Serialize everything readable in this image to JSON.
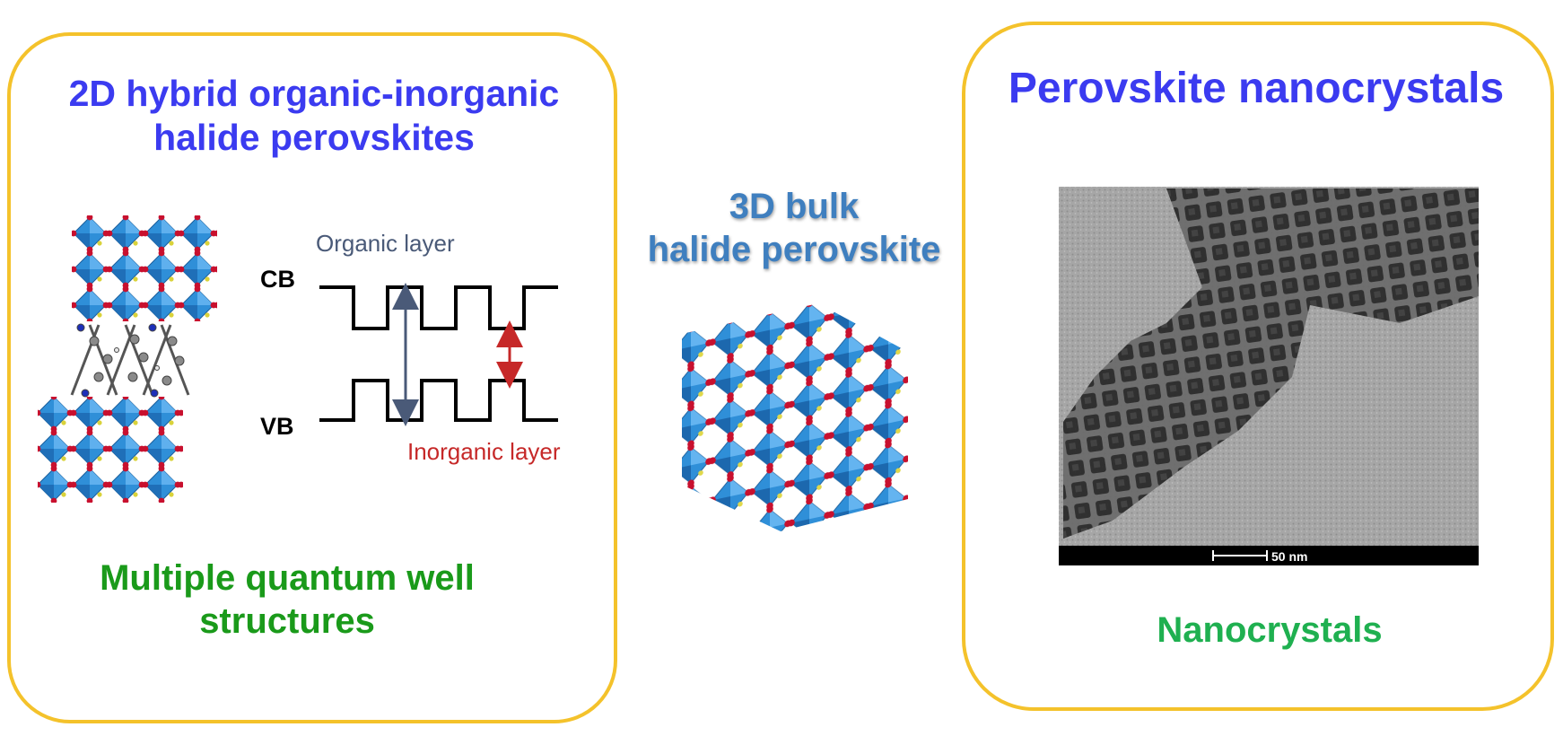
{
  "left_panel": {
    "title_line1": "2D hybrid organic-inorganic",
    "title_line2": "halide perovskites",
    "band_diagram": {
      "organic_label": "Organic layer",
      "inorganic_label": "Inorganic layer",
      "cb_label": "CB",
      "vb_label": "VB"
    },
    "caption_line1": "Multiple quantum well",
    "caption_line2": "structures"
  },
  "middle": {
    "title_line1": "3D bulk",
    "title_line2": "halide perovskite"
  },
  "right_panel": {
    "title": "Perovskite nanocrystals",
    "scale_bar_label": "50 nm",
    "caption": "Nanocrystals"
  },
  "colors": {
    "panel_border": "#f4c22b",
    "title_blue": "#3b3bf0",
    "mid_title_blue": "#3f7fbf",
    "caption_green": "#1a9a1a",
    "nano_green": "#1fb050",
    "octahedron_blue": "#2f8fd8",
    "atom_red": "#c8102e",
    "gap_arrow_red": "#c62828",
    "gap_arrow_slate": "#4a5a78"
  }
}
